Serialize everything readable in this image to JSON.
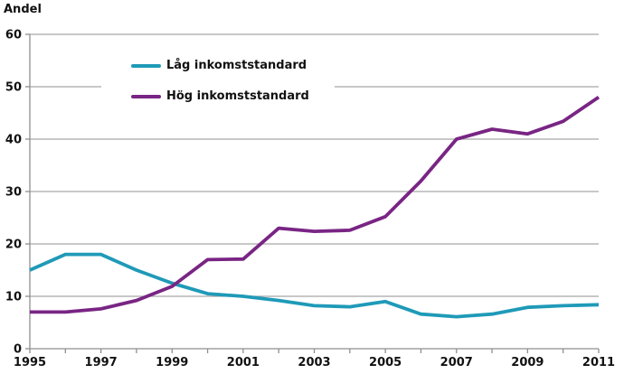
{
  "page": {
    "background": "#ffffff"
  },
  "chart_data": {
    "type": "line",
    "title": "",
    "ylabel": "Andel",
    "xlabel": "",
    "x": [
      1995,
      1996,
      1997,
      1998,
      1999,
      2000,
      2001,
      2002,
      2003,
      2004,
      2005,
      2006,
      2007,
      2008,
      2009,
      2010,
      2011
    ],
    "x_tick_labels": [
      "1995",
      "1997",
      "1999",
      "2001",
      "2003",
      "2005",
      "2007",
      "2009",
      "2011"
    ],
    "x_label_every": 2,
    "ylim": [
      0,
      60
    ],
    "ytick_step": 10,
    "grid": true,
    "legend_position": "top-left-inside",
    "series": [
      {
        "name": "Låg inkomststandard",
        "color": "#1f9ab8",
        "values": [
          15,
          18,
          18,
          15,
          12.5,
          10.5,
          10,
          9.2,
          8.2,
          8,
          9,
          6.6,
          6.1,
          6.6,
          7.9,
          8.2,
          8.4
        ]
      },
      {
        "name": "Hög inkomststandard",
        "color": "#792584",
        "values": [
          7,
          7,
          7.6,
          9.2,
          11.9,
          17,
          17.1,
          23,
          22.4,
          22.6,
          25.2,
          32,
          40,
          41.9,
          41,
          43.4,
          48
        ]
      }
    ]
  },
  "style_colors": {
    "grid": "#a8a8a8",
    "axis": "#8f8f8f",
    "text": "#111111"
  }
}
